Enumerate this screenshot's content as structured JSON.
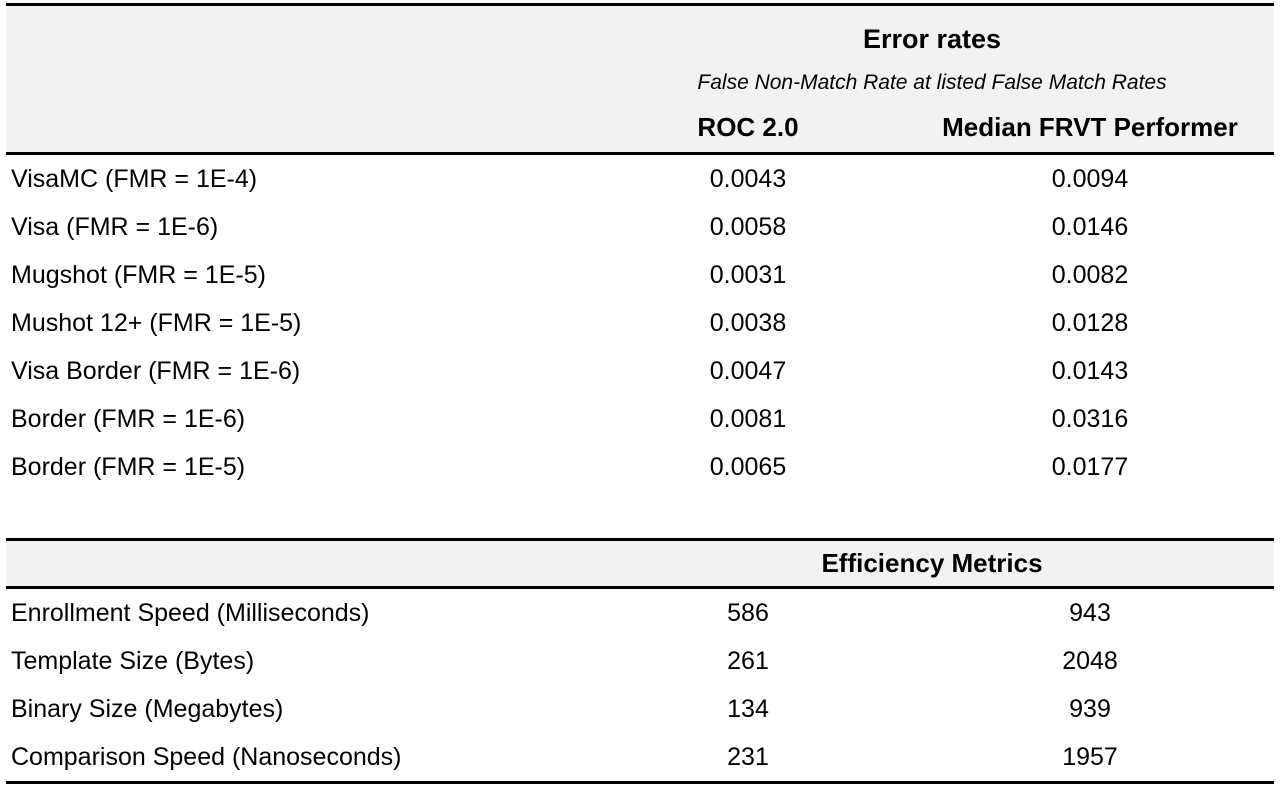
{
  "page": {
    "background_color": "#ffffff",
    "header_band_color": "#f2f2f2",
    "rule_color": "#000000",
    "text_color": "#000000"
  },
  "error_table": {
    "title": "Error rates",
    "subtitle": "False Non-Match Rate at listed False Match Rates",
    "columns": [
      "ROC 2.0",
      "Median FRVT Performer"
    ],
    "rows": [
      {
        "label": "VisaMC (FMR = 1E-4)",
        "values": [
          "0.0043",
          "0.0094"
        ]
      },
      {
        "label": "Visa (FMR = 1E-6)",
        "values": [
          "0.0058",
          "0.0146"
        ]
      },
      {
        "label": "Mugshot (FMR = 1E-5)",
        "values": [
          "0.0031",
          "0.0082"
        ]
      },
      {
        "label": "Mushot 12+ (FMR = 1E-5)",
        "values": [
          "0.0038",
          "0.0128"
        ]
      },
      {
        "label": "Visa Border (FMR = 1E-6)",
        "values": [
          "0.0047",
          "0.0143"
        ]
      },
      {
        "label": "Border (FMR = 1E-6)",
        "values": [
          "0.0081",
          "0.0316"
        ]
      },
      {
        "label": "Border (FMR = 1E-5)",
        "values": [
          "0.0065",
          "0.0177"
        ]
      }
    ]
  },
  "efficiency_table": {
    "title": "Efficiency Metrics",
    "rows": [
      {
        "label": "Enrollment Speed (Milliseconds)",
        "values": [
          "586",
          "943"
        ]
      },
      {
        "label": "Template Size (Bytes)",
        "values": [
          "261",
          "2048"
        ]
      },
      {
        "label": "Binary Size (Megabytes)",
        "values": [
          "134",
          "939"
        ]
      },
      {
        "label": "Comparison Speed (Nanoseconds)",
        "values": [
          "231",
          "1957"
        ]
      }
    ]
  }
}
